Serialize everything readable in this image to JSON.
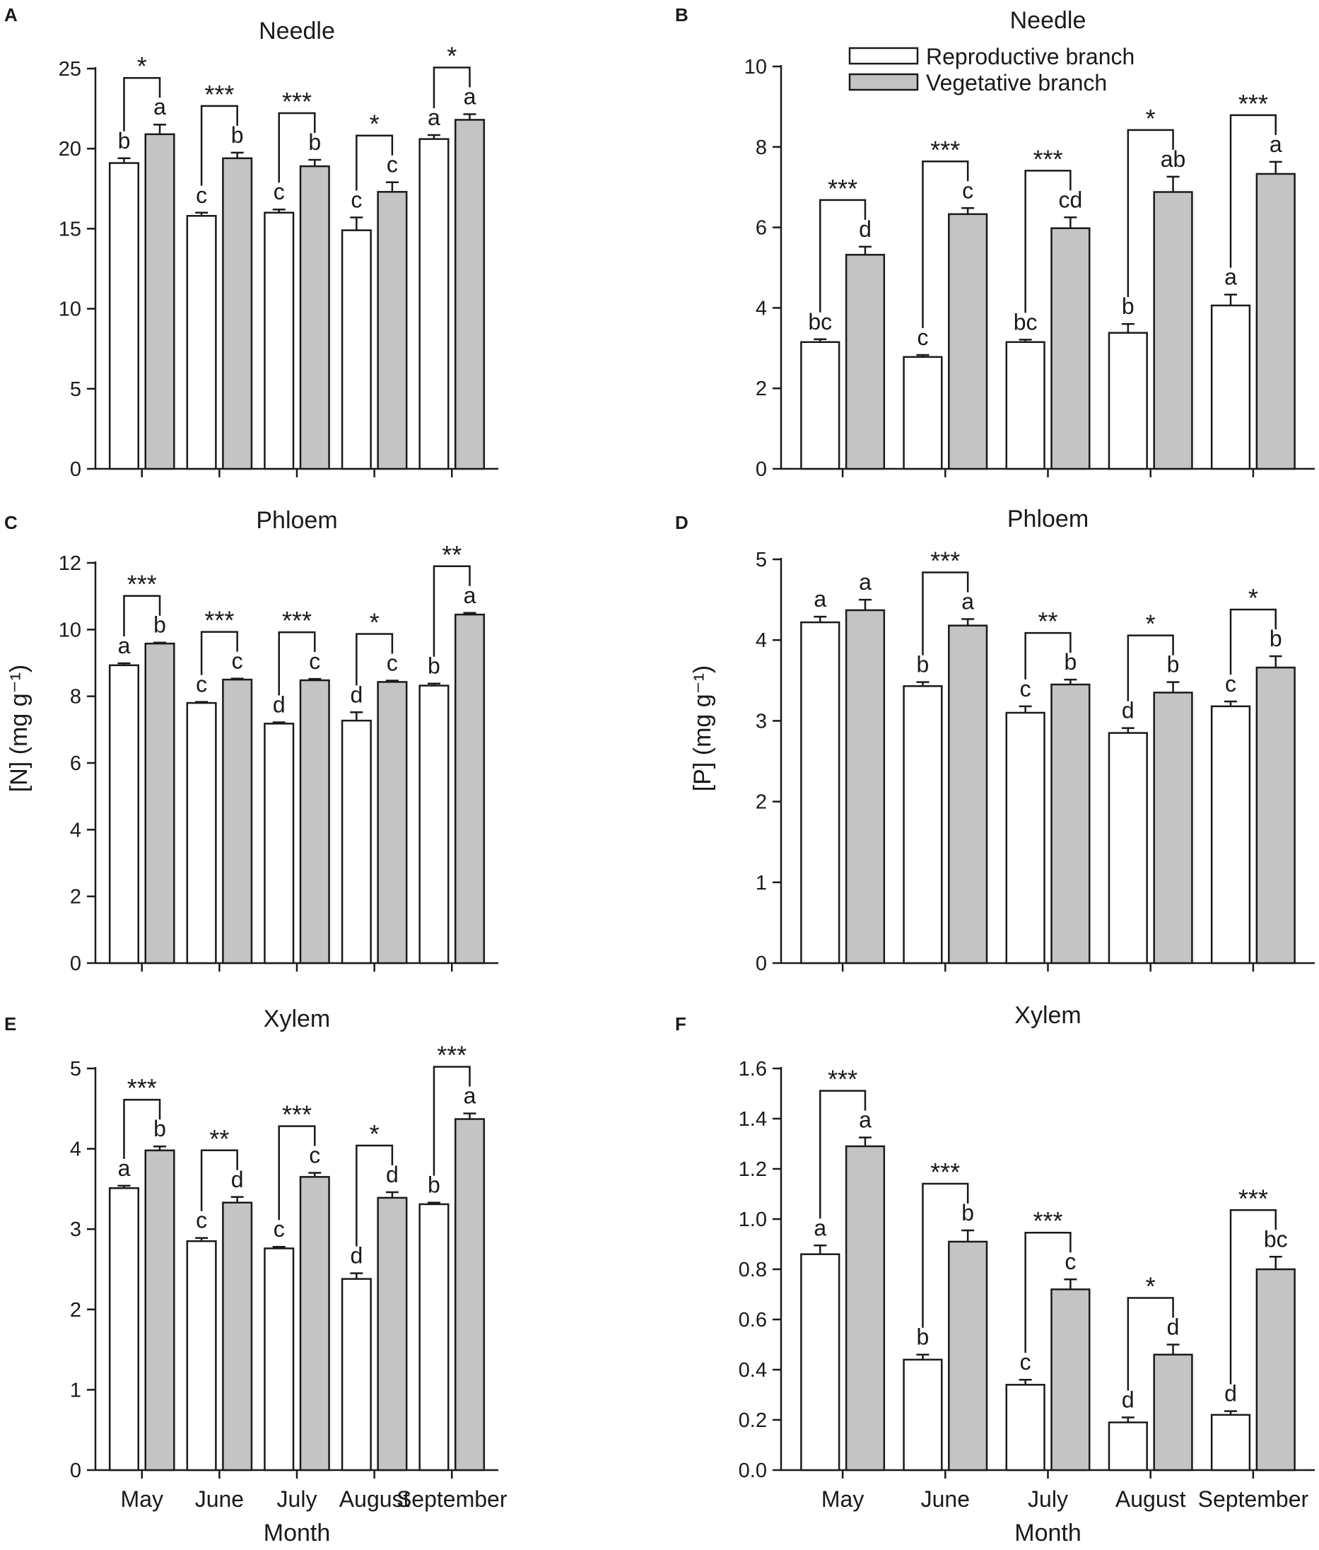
{
  "figure": {
    "xlabel": "Month",
    "legend": {
      "series": [
        "Reproductive branch",
        "Vegetative branch"
      ],
      "placement": "top-right of panel B"
    }
  },
  "colors": {
    "reproductive": "#ffffff",
    "vegetative": "#c4c4c4",
    "ink": "#1a1a1a"
  },
  "chart_data": [
    {
      "panel": "A",
      "type": "bar",
      "title": "Needle",
      "ylabel": "",
      "xlabel": "",
      "categories": [
        "May",
        "June",
        "July",
        "August",
        "September"
      ],
      "ylim": [
        0,
        25
      ],
      "yticks": [
        "0",
        "5",
        "10",
        "15",
        "20",
        "25"
      ],
      "series": [
        {
          "name": "Reproductive branch",
          "values": [
            19.1,
            15.8,
            16.0,
            14.9,
            20.6
          ],
          "errors": [
            0.3,
            0.2,
            0.2,
            0.8,
            0.25
          ],
          "letters": [
            "b",
            "c",
            "c",
            "c",
            "a"
          ]
        },
        {
          "name": "Vegetative branch",
          "values": [
            20.9,
            19.4,
            18.9,
            17.3,
            21.8
          ],
          "errors": [
            0.6,
            0.35,
            0.4,
            0.6,
            0.35
          ],
          "letters": [
            "a",
            "b",
            "b",
            "c",
            "a"
          ]
        }
      ],
      "significance": [
        "*",
        "***",
        "***",
        "*",
        "*"
      ]
    },
    {
      "panel": "B",
      "type": "bar",
      "title": "Needle",
      "ylabel": "",
      "xlabel": "",
      "categories": [
        "May",
        "June",
        "July",
        "August",
        "September"
      ],
      "ylim": [
        0,
        10
      ],
      "yticks": [
        "0",
        "2",
        "4",
        "6",
        "8",
        "10"
      ],
      "series": [
        {
          "name": "Reproductive branch",
          "values": [
            3.15,
            2.78,
            3.15,
            3.38,
            4.06
          ],
          "errors": [
            0.07,
            0.05,
            0.06,
            0.22,
            0.27
          ],
          "letters": [
            "bc",
            "c",
            "bc",
            "b",
            "a"
          ]
        },
        {
          "name": "Vegetative branch",
          "values": [
            5.32,
            6.33,
            5.98,
            6.88,
            7.33
          ],
          "errors": [
            0.2,
            0.15,
            0.27,
            0.38,
            0.3
          ],
          "letters": [
            "d",
            "c",
            "cd",
            "ab",
            "a"
          ]
        }
      ],
      "significance": [
        "***",
        "***",
        "***",
        "*",
        "***"
      ]
    },
    {
      "panel": "C",
      "type": "bar",
      "title": "Phloem",
      "ylabel": "[N] (mg g⁻¹)",
      "xlabel": "",
      "categories": [
        "May",
        "June",
        "July",
        "August",
        "September"
      ],
      "ylim": [
        0,
        12
      ],
      "yticks": [
        "0",
        "2",
        "4",
        "6",
        "8",
        "10",
        "12"
      ],
      "series": [
        {
          "name": "Reproductive branch",
          "values": [
            8.93,
            7.8,
            7.18,
            7.27,
            8.32
          ],
          "errors": [
            0.06,
            0.03,
            0.04,
            0.25,
            0.06
          ],
          "letters": [
            "a",
            "c",
            "d",
            "d",
            "b"
          ]
        },
        {
          "name": "Vegetative branch",
          "values": [
            9.58,
            8.5,
            8.48,
            8.43,
            10.45
          ],
          "errors": [
            0.03,
            0.03,
            0.04,
            0.04,
            0.05
          ],
          "letters": [
            "b",
            "c",
            "c",
            "c",
            "a"
          ]
        }
      ],
      "significance": [
        "***",
        "***",
        "***",
        "*",
        "**"
      ]
    },
    {
      "panel": "D",
      "type": "bar",
      "title": "Phloem",
      "ylabel": "[P] (mg g⁻¹)",
      "xlabel": "",
      "categories": [
        "May",
        "June",
        "July",
        "August",
        "September"
      ],
      "ylim": [
        0,
        5
      ],
      "yticks": [
        "0",
        "1",
        "2",
        "3",
        "4",
        "5"
      ],
      "series": [
        {
          "name": "Reproductive branch",
          "values": [
            4.22,
            3.43,
            3.1,
            2.85,
            3.18
          ],
          "errors": [
            0.07,
            0.05,
            0.08,
            0.06,
            0.06
          ],
          "letters": [
            "a",
            "b",
            "c",
            "d",
            "c"
          ]
        },
        {
          "name": "Vegetative branch",
          "values": [
            4.37,
            4.18,
            3.45,
            3.35,
            3.66
          ],
          "errors": [
            0.13,
            0.08,
            0.06,
            0.13,
            0.14
          ],
          "letters": [
            "a",
            "a",
            "b",
            "b",
            "b"
          ]
        }
      ],
      "significance": [
        "",
        "***",
        "**",
        "*",
        "*"
      ]
    },
    {
      "panel": "E",
      "type": "bar",
      "title": "Xylem",
      "ylabel": "",
      "xlabel": "Month",
      "categories": [
        "May",
        "June",
        "July",
        "August",
        "September"
      ],
      "ylim": [
        0,
        5
      ],
      "yticks": [
        "0",
        "1",
        "2",
        "3",
        "4",
        "5"
      ],
      "series": [
        {
          "name": "Reproductive branch",
          "values": [
            3.51,
            2.85,
            2.76,
            2.38,
            3.31
          ],
          "errors": [
            0.03,
            0.04,
            0.02,
            0.07,
            0.02
          ],
          "letters": [
            "a",
            "c",
            "c",
            "d",
            "b"
          ]
        },
        {
          "name": "Vegetative branch",
          "values": [
            3.98,
            3.33,
            3.65,
            3.39,
            4.37
          ],
          "errors": [
            0.05,
            0.07,
            0.05,
            0.07,
            0.07
          ],
          "letters": [
            "b",
            "d",
            "c",
            "d",
            "a"
          ]
        }
      ],
      "significance": [
        "***",
        "**",
        "***",
        "*",
        "***"
      ]
    },
    {
      "panel": "F",
      "type": "bar",
      "title": "Xylem",
      "ylabel": "",
      "xlabel": "Month",
      "categories": [
        "May",
        "June",
        "July",
        "August",
        "September"
      ],
      "ylim": [
        0,
        1.6
      ],
      "yticks": [
        "0.0",
        "0.2",
        "0.4",
        "0.6",
        "0.8",
        "1.0",
        "1.2",
        "1.4",
        "1.6"
      ],
      "series": [
        {
          "name": "Reproductive branch",
          "values": [
            0.86,
            0.44,
            0.34,
            0.19,
            0.22
          ],
          "errors": [
            0.035,
            0.02,
            0.02,
            0.02,
            0.015
          ],
          "letters": [
            "a",
            "b",
            "c",
            "d",
            "d"
          ]
        },
        {
          "name": "Vegetative branch",
          "values": [
            1.29,
            0.91,
            0.72,
            0.46,
            0.8
          ],
          "errors": [
            0.035,
            0.045,
            0.04,
            0.04,
            0.05
          ],
          "letters": [
            "a",
            "b",
            "c",
            "d",
            "bc"
          ]
        }
      ],
      "significance": [
        "***",
        "***",
        "***",
        "*",
        "***"
      ]
    }
  ]
}
